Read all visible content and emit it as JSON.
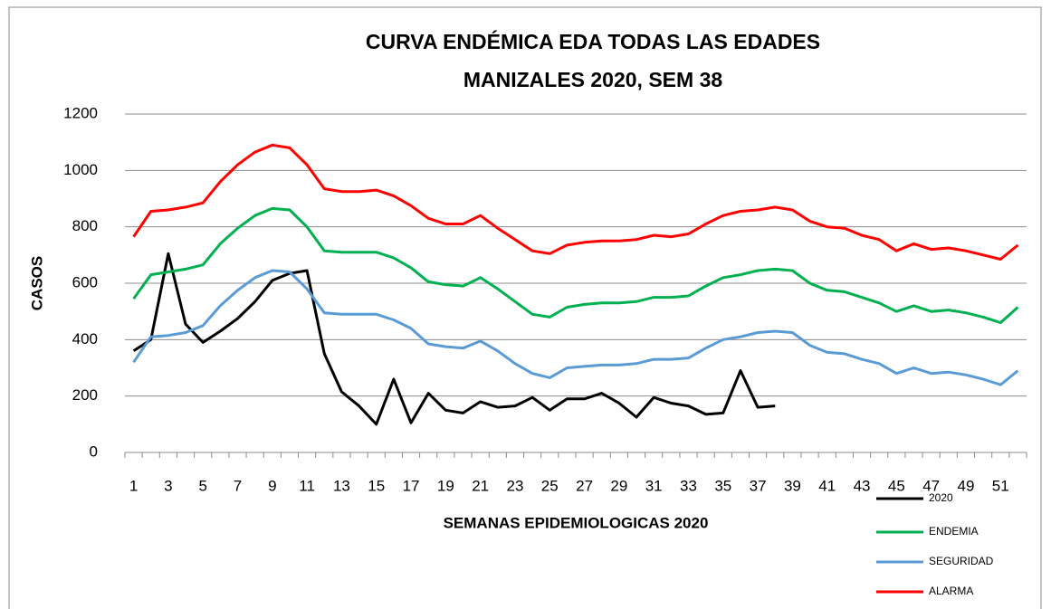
{
  "chart_data": {
    "type": "line",
    "title": [
      "CURVA  ENDÉMICA EDA TODAS LAS EDADES",
      "MANIZALES  2020, SEM 38"
    ],
    "xlabel": "SEMANAS  EPIDEMIOLOGICAS  2020",
    "ylabel": "CASOS",
    "categories": [
      1,
      null,
      3,
      null,
      5,
      null,
      7,
      null,
      9,
      null,
      11,
      null,
      13,
      null,
      15,
      null,
      17,
      null,
      19,
      null,
      21,
      null,
      23,
      null,
      25,
      null,
      27,
      null,
      29,
      null,
      31,
      null,
      33,
      null,
      35,
      null,
      37,
      null,
      39,
      null,
      41,
      null,
      43,
      null,
      45,
      null,
      47,
      null,
      49,
      null,
      51,
      null
    ],
    "ylim": [
      0,
      1200
    ],
    "yticks": [
      0,
      200,
      400,
      600,
      800,
      1000,
      1200
    ],
    "grid": true,
    "legend": "bottom-right",
    "series": [
      {
        "name": "2020",
        "color": "#000000",
        "values": [
          360,
          400,
          705,
          455,
          390,
          430,
          475,
          535,
          610,
          635,
          645,
          350,
          215,
          165,
          100,
          260,
          105,
          210,
          150,
          140,
          180,
          160,
          165,
          195,
          150,
          190,
          190,
          210,
          175,
          125,
          195,
          175,
          165,
          135,
          140,
          290,
          160,
          165,
          null,
          null,
          null,
          null,
          null,
          null,
          null,
          null,
          null,
          null,
          null,
          null,
          null,
          null
        ]
      },
      {
        "name": "ENDEMIA",
        "color": "#00b050",
        "values": [
          545,
          630,
          640,
          650,
          665,
          740,
          795,
          840,
          865,
          860,
          800,
          715,
          710,
          710,
          710,
          690,
          655,
          605,
          595,
          590,
          620,
          580,
          535,
          490,
          480,
          515,
          525,
          530,
          530,
          535,
          550,
          550,
          555,
          590,
          620,
          630,
          645,
          650,
          645,
          600,
          575,
          570,
          550,
          530,
          500,
          520,
          500,
          505,
          495,
          480,
          460,
          515
        ]
      },
      {
        "name": "SEGURIDAD",
        "color": "#5b9bd5",
        "values": [
          320,
          410,
          415,
          425,
          450,
          520,
          575,
          620,
          645,
          640,
          580,
          495,
          490,
          490,
          490,
          470,
          440,
          385,
          375,
          370,
          395,
          360,
          315,
          280,
          265,
          300,
          305,
          310,
          310,
          315,
          330,
          330,
          335,
          370,
          400,
          410,
          425,
          430,
          425,
          380,
          355,
          350,
          330,
          315,
          280,
          300,
          280,
          285,
          275,
          260,
          240,
          290
        ]
      },
      {
        "name": "ALARMA",
        "color": "#ff0000",
        "values": [
          765,
          855,
          860,
          870,
          885,
          960,
          1020,
          1065,
          1090,
          1080,
          1020,
          935,
          925,
          925,
          930,
          910,
          875,
          830,
          810,
          810,
          840,
          795,
          755,
          715,
          705,
          735,
          745,
          750,
          750,
          755,
          770,
          765,
          775,
          810,
          840,
          855,
          860,
          870,
          860,
          820,
          800,
          795,
          770,
          755,
          715,
          740,
          720,
          725,
          715,
          700,
          685,
          735
        ]
      }
    ]
  }
}
